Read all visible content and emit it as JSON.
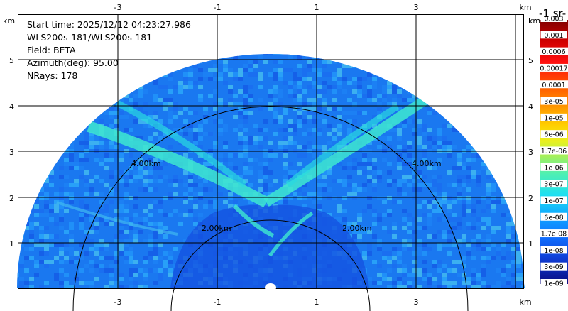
{
  "info": {
    "start_time": "Start time: 2025/12/12 04:23:27.986",
    "instrument": "WLS200s-181/WLS200s-181",
    "field": "Field: BETA",
    "azimuth": "Azimuth(deg): 95.00",
    "nrays": "NRays: 178"
  },
  "axes": {
    "x_ticks": [
      "-3",
      "-1",
      "1",
      "3"
    ],
    "y_ticks": [
      "1",
      "2",
      "3",
      "4",
      "5"
    ],
    "x_unit": "km",
    "y_unit": "km"
  },
  "range_rings": {
    "labels": [
      "2.00km",
      "2.00km",
      "4.00km",
      "4.00km"
    ]
  },
  "colorbar": {
    "unit_label": "-1 sr-",
    "labels": [
      "0.003",
      "0.001",
      "0.0006",
      "0.00017",
      "0.0001",
      "3e-05",
      "1e-05",
      "6e-06",
      "1.7e-06",
      "1e-06",
      "3e-07",
      "1e-07",
      "6e-08",
      "1.7e-08",
      "1e-08",
      "3e-09",
      "1e-09"
    ],
    "colors": [
      "#a00000",
      "#c00000",
      "#e00000",
      "#ff2000",
      "#ff5000",
      "#ff8c00",
      "#ffd000",
      "#f0f030",
      "#c8f040",
      "#70f080",
      "#40f0c0",
      "#20d0f0",
      "#10a0ff",
      "#1070ff",
      "#1040e0",
      "#1020b0",
      "#101090"
    ]
  }
}
